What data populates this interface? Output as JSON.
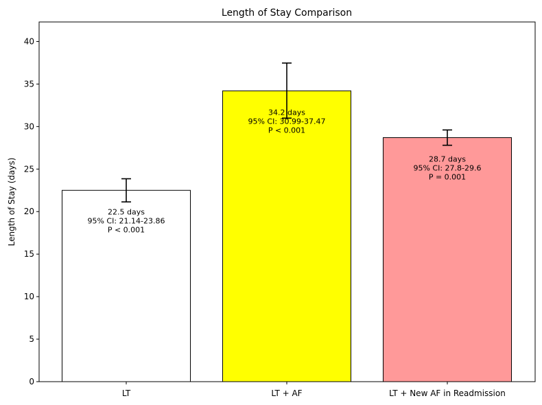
{
  "chart_data": {
    "type": "bar",
    "title": "Length of Stay Comparison",
    "xlabel": "",
    "ylabel": "Length of Stay (days)",
    "ylim": [
      0,
      42.3
    ],
    "yticks": [
      0,
      5,
      10,
      15,
      20,
      25,
      30,
      35,
      40
    ],
    "grid": false,
    "categories": [
      "LT",
      "LT + AF",
      "LT + New AF in Readmission"
    ],
    "values": [
      22.5,
      34.2,
      28.7
    ],
    "ci_low": [
      21.14,
      30.99,
      27.8
    ],
    "ci_high": [
      23.86,
      37.47,
      29.6
    ],
    "colors": [
      "#ffffff",
      "#ffff00",
      "#ff9999"
    ],
    "edge_color": "#000000",
    "annotations": [
      [
        "22.5 days",
        "95% CI: 21.14-23.86",
        "P < 0.001"
      ],
      [
        "34.2 days",
        "95% CI: 30.99-37.47",
        "P < 0.001"
      ],
      [
        "28.7 days",
        "95% CI: 27.8-29.6",
        "P = 0.001"
      ]
    ]
  }
}
